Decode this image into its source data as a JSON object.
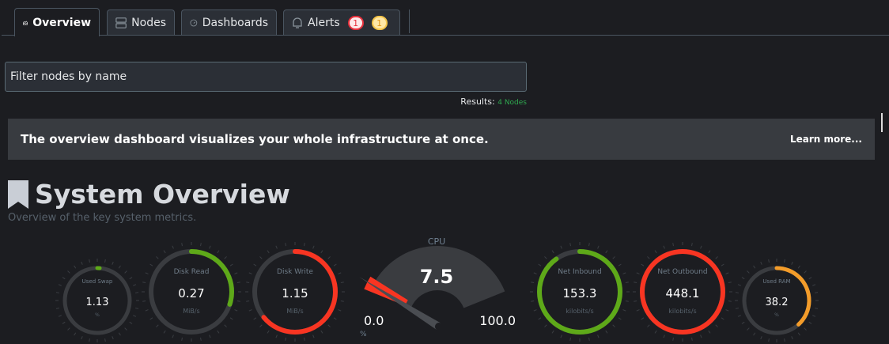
{
  "tabs": [
    {
      "label": "Overview",
      "icon": "overview-icon",
      "active": true
    },
    {
      "label": "Nodes",
      "icon": "server-icon"
    },
    {
      "label": "Dashboards",
      "icon": "gauge-icon"
    },
    {
      "label": "Alerts",
      "icon": "bell-icon",
      "badges": [
        "1",
        "1"
      ]
    }
  ],
  "filter": {
    "placeholder": "Filter nodes by name"
  },
  "results": {
    "label": "Results:",
    "count": "4 Nodes"
  },
  "banner": {
    "message": "The overview dashboard visualizes your whole infrastructure at once.",
    "link": "Learn more..."
  },
  "section": {
    "title": "System Overview",
    "subtitle": "Overview of the key system metrics."
  },
  "colors": {
    "green": "#5ea919",
    "red": "#f83522",
    "orange": "#f39c2a",
    "track": "#3a3c40"
  },
  "gauges": [
    {
      "name": "used-swap",
      "label": "Used Swap",
      "value": "1.13",
      "unit": "%",
      "fill": 0.0113,
      "color": "#5ea919",
      "size": "small"
    },
    {
      "name": "disk-read",
      "label": "Disk Read",
      "value": "0.27",
      "unit": "MiB/s",
      "fill": 0.3,
      "color": "#5ea919",
      "size": "large"
    },
    {
      "name": "disk-write",
      "label": "Disk Write",
      "value": "1.15",
      "unit": "MiB/s",
      "fill": 0.64,
      "color": "#f83522",
      "size": "large"
    },
    {
      "name": "net-inbound",
      "label": "Net Inbound",
      "value": "153.3",
      "unit": "kilobits/s",
      "fill": 0.9,
      "color": "#5ea919",
      "size": "large"
    },
    {
      "name": "net-outbound",
      "label": "Net Outbound",
      "value": "448.1",
      "unit": "kilobits/s",
      "fill": 1.0,
      "color": "#f83522",
      "size": "large"
    },
    {
      "name": "used-ram",
      "label": "Used RAM",
      "value": "38.2",
      "unit": "%",
      "fill": 0.382,
      "color": "#f39c2a",
      "size": "small"
    }
  ],
  "cpu": {
    "label": "CPU",
    "value": "7.5",
    "min": "0.0",
    "max": "100.0",
    "unit": "%",
    "fill": 0.075,
    "color": "#f83522"
  }
}
